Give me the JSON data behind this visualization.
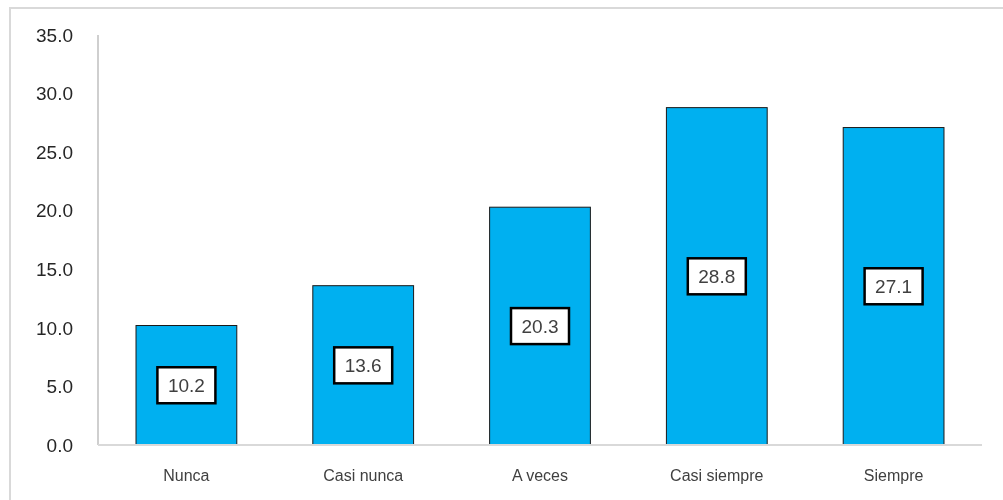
{
  "chart_data": {
    "type": "bar",
    "categories": [
      "Nunca",
      "Casi nunca",
      "A veces",
      "Casi siempre",
      "Siempre"
    ],
    "values": [
      10.2,
      13.6,
      20.3,
      28.8,
      27.1
    ],
    "color": "#00b0f0",
    "ylim": [
      0,
      35
    ],
    "yticks": [
      {
        "value": 0,
        "label": "0.0"
      },
      {
        "value": 5,
        "label": "5.0"
      },
      {
        "value": 10,
        "label": "10.0"
      },
      {
        "value": 15,
        "label": "15.0"
      },
      {
        "value": 20,
        "label": "20.0"
      },
      {
        "value": 25,
        "label": "25.0"
      },
      {
        "value": 30,
        "label": "30.0"
      },
      {
        "value": 35,
        "label": "35.0"
      }
    ],
    "data_labels": true
  }
}
